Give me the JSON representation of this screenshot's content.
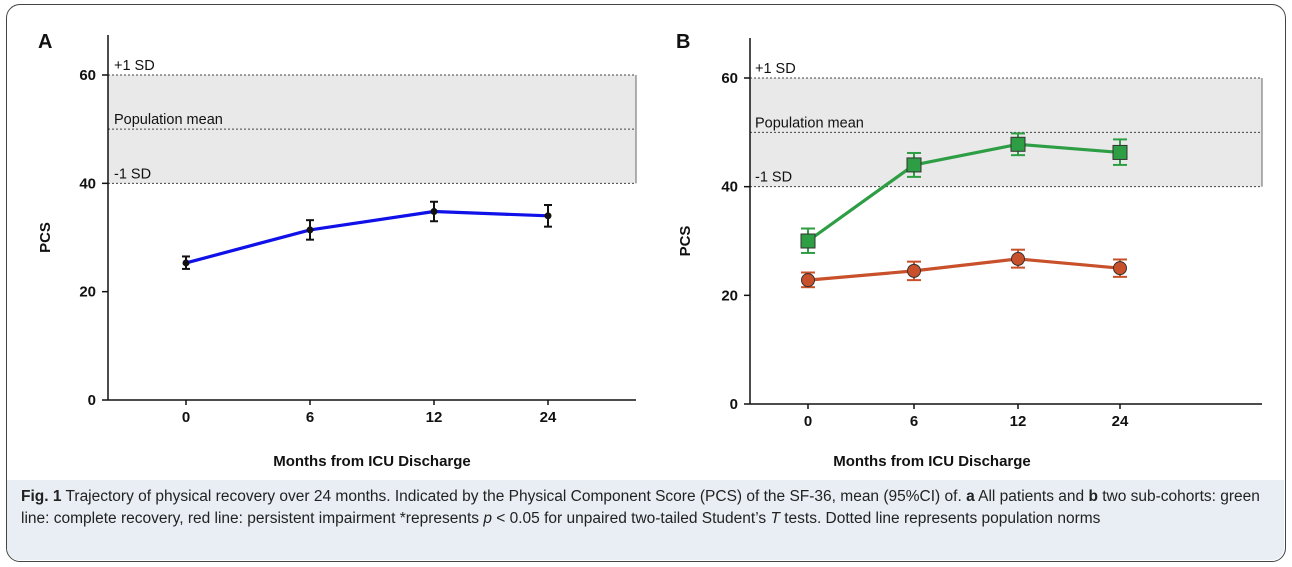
{
  "chart_data": [
    {
      "panel": "A",
      "type": "line",
      "x": [
        "0",
        "6",
        "12",
        "24"
      ],
      "ylabel": "PCS",
      "xlabel": "Months from ICU Discharge",
      "ylim": [
        0,
        60
      ],
      "yticks": [
        "0",
        "20",
        "40",
        "60"
      ],
      "reference_lines": [
        {
          "label": "+1 SD",
          "value": 60
        },
        {
          "label": "Population mean",
          "value": 50
        },
        {
          "label": "-1 SD",
          "value": 40
        }
      ],
      "series": [
        {
          "values": [
            25.3,
            31.4,
            34.8,
            34.0
          ],
          "ci_low": [
            24.2,
            29.6,
            33.0,
            32.0
          ],
          "ci_high": [
            26.5,
            33.2,
            36.6,
            36.0
          ],
          "color": "#1010e8",
          "marker": "circle"
        }
      ]
    },
    {
      "panel": "B",
      "type": "line",
      "x": [
        "0",
        "6",
        "12",
        "24"
      ],
      "ylabel": "PCS",
      "xlabel": "Months from ICU Discharge",
      "ylim": [
        0,
        60
      ],
      "yticks": [
        "0",
        "20",
        "40",
        "60"
      ],
      "reference_lines": [
        {
          "label": "+1 SD",
          "value": 60
        },
        {
          "label": "Population mean",
          "value": 50
        },
        {
          "label": "-1 SD",
          "value": 40
        }
      ],
      "series": [
        {
          "values": [
            30.0,
            44.0,
            47.8,
            46.3
          ],
          "ci_low": [
            27.8,
            41.8,
            45.8,
            44.0
          ],
          "ci_high": [
            32.3,
            46.2,
            49.8,
            48.7
          ],
          "color": "#2e9e44",
          "marker": "square"
        },
        {
          "values": [
            22.8,
            24.5,
            26.7,
            25.0
          ],
          "ci_low": [
            21.5,
            22.8,
            25.1,
            23.4
          ],
          "ci_high": [
            24.2,
            26.2,
            28.4,
            26.6
          ],
          "color": "#c8502a",
          "marker": "circle"
        }
      ]
    }
  ],
  "caption": {
    "fig_label": "Fig. 1",
    "text_1": " Trajectory of physical recovery over 24 months. Indicated by the Physical Component Score (PCS) of the SF-36, mean (95%CI) of. ",
    "a_label": "a",
    "text_2": " All patients and ",
    "b_label": "b",
    "text_3": " two sub-cohorts: green line: complete recovery, red line: persistent impairment *represents ",
    "p_symbol": "p",
    "text_4": " < 0.05 for unpaired two-tailed Student’s ",
    "t_symbol": "T",
    "text_5": " tests. Dotted line represents population norms"
  }
}
